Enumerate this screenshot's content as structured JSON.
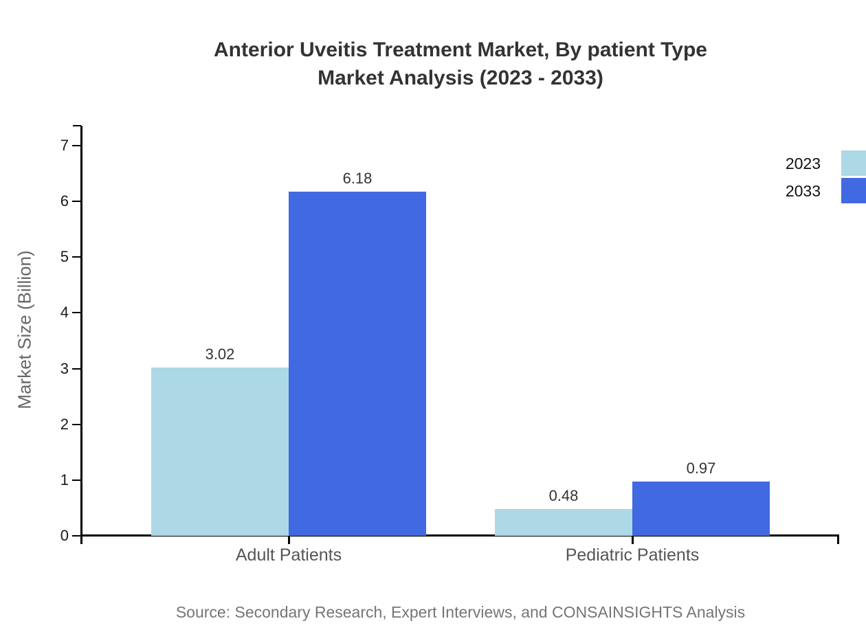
{
  "title": {
    "line1": "Anterior Uveitis Treatment Market, By patient Type",
    "line2": "Market Analysis (2023 - 2033)"
  },
  "chart_data": {
    "type": "bar",
    "title": "Anterior Uveitis Treatment Market, By patient Type Market Analysis (2023 - 2033)",
    "categories": [
      "Adult Patients",
      "Pediatric Patients"
    ],
    "series": [
      {
        "name": "2023",
        "color": "#ADD8E6",
        "values": [
          3.02,
          0.48
        ]
      },
      {
        "name": "2033",
        "color": "#4169E1",
        "values": [
          6.18,
          0.97
        ]
      }
    ],
    "xlabel": "",
    "ylabel": "Market Size (Billion)",
    "ylim": [
      0,
      7
    ],
    "yticks": [
      0,
      1,
      2,
      3,
      4,
      5,
      6,
      7
    ],
    "grid": false,
    "legend_position": "top-right",
    "value_labels_shown": true
  },
  "source": "Source: Secondary Research, Expert Interviews, and CONSAINSIGHTS Analysis",
  "colors": {
    "series_2023": "#ADD8E6",
    "series_2033": "#4169E1",
    "axis": "#000000",
    "title_text": "#333333",
    "category_text": "#555555",
    "muted_text": "#757575"
  }
}
